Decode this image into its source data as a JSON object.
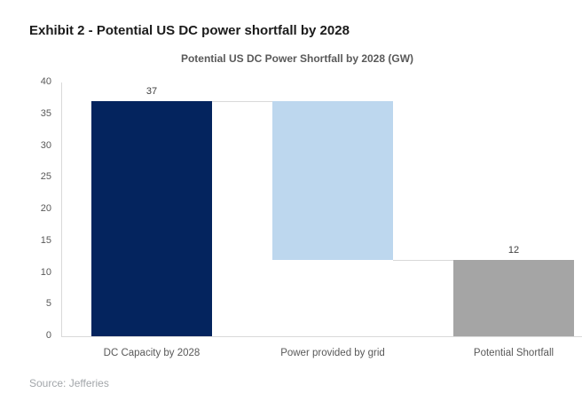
{
  "exhibit_title": "Exhibit 2 - Potential US DC power shortfall by 2028",
  "source_note": "Source: Jefferies",
  "chart_data": {
    "type": "bar",
    "subtype": "waterfall",
    "title": "Potential US DC Power Shortfall by 2028 (GW)",
    "xlabel": "",
    "ylabel": "",
    "ylim": [
      0,
      40
    ],
    "yticks": [
      0,
      5,
      10,
      15,
      20,
      25,
      30,
      35,
      40
    ],
    "grid": false,
    "legend": false,
    "categories": [
      "DC Capacity by 2028",
      "Power provided by grid",
      "Potential Shortfall"
    ],
    "bars": [
      {
        "category": "DC Capacity by 2028",
        "start": 0,
        "end": 37,
        "value": 37,
        "data_label": "37",
        "color": "#04245e"
      },
      {
        "category": "Power provided by grid",
        "start": 12,
        "end": 37,
        "value": 25,
        "data_label": "",
        "color": "#bdd7ee"
      },
      {
        "category": "Potential Shortfall",
        "start": 0,
        "end": 12,
        "value": 12,
        "data_label": "12",
        "color": "#a5a5a5"
      }
    ],
    "connectors": [
      {
        "level": 37,
        "between": [
          0,
          1
        ]
      },
      {
        "level": 12,
        "between": [
          1,
          2
        ]
      }
    ],
    "colors": {
      "axis_line": "#d9d9d9",
      "connector_line": "#d9d9d9",
      "tick_text": "#595959",
      "category_text": "#595959",
      "value_label_text": "#404040",
      "title_text": "#595959"
    }
  }
}
